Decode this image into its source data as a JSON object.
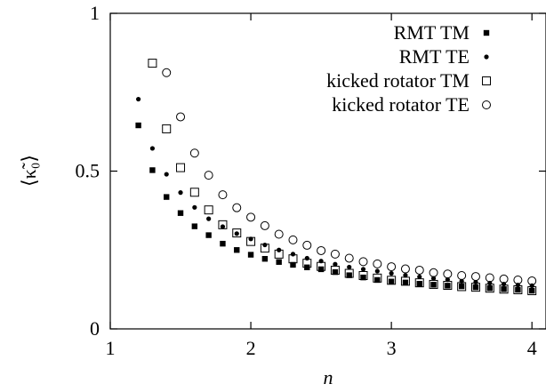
{
  "chart_data": {
    "type": "scatter",
    "title": "",
    "xlabel": "n",
    "ylabel": "⟨κ̃₀⟩",
    "xlim": [
      1,
      4.1
    ],
    "ylim": [
      0,
      1
    ],
    "xticks": [
      "1",
      "2",
      "3",
      "4"
    ],
    "xtick_values": [
      1,
      2,
      3,
      4
    ],
    "yticks": [
      "0",
      "0.5",
      "1"
    ],
    "ytick_values": [
      0,
      0.5,
      1
    ],
    "grid": false,
    "legend_position": "top-right",
    "series": [
      {
        "name": "RMT TM",
        "marker": "filled-square",
        "x": [
          1.2,
          1.3,
          1.4,
          1.5,
          1.6,
          1.7,
          1.8,
          1.9,
          2.0,
          2.1,
          2.2,
          2.3,
          2.4,
          2.5,
          2.6,
          2.7,
          2.8,
          2.9,
          3.0,
          3.1,
          3.2,
          3.3,
          3.4,
          3.5,
          3.6,
          3.7,
          3.8,
          3.9,
          4.0
        ],
        "y": [
          0.645,
          0.503,
          0.418,
          0.367,
          0.325,
          0.297,
          0.27,
          0.25,
          0.235,
          0.222,
          0.212,
          0.203,
          0.195,
          0.189,
          0.18,
          0.17,
          0.163,
          0.155,
          0.15,
          0.147,
          0.143,
          0.14,
          0.137,
          0.135,
          0.132,
          0.129,
          0.126,
          0.124,
          0.121
        ]
      },
      {
        "name": "RMT TE",
        "marker": "filled-circle",
        "x": [
          1.2,
          1.3,
          1.4,
          1.5,
          1.6,
          1.7,
          1.8,
          1.9,
          2.0,
          2.1,
          2.2,
          2.3,
          2.4,
          2.5,
          2.6,
          2.7,
          2.8,
          2.9,
          3.0,
          3.1,
          3.2,
          3.3,
          3.4,
          3.5,
          3.6,
          3.7,
          3.8,
          3.9,
          4.0
        ],
        "y": [
          0.728,
          0.572,
          0.49,
          0.432,
          0.385,
          0.349,
          0.324,
          0.302,
          0.285,
          0.266,
          0.25,
          0.237,
          0.224,
          0.215,
          0.205,
          0.196,
          0.189,
          0.183,
          0.176,
          0.17,
          0.165,
          0.16,
          0.156,
          0.151,
          0.148,
          0.145,
          0.142,
          0.139,
          0.137
        ]
      },
      {
        "name": "kicked rotator TM",
        "marker": "open-square",
        "x": [
          1.3,
          1.4,
          1.5,
          1.6,
          1.7,
          1.8,
          1.9,
          2.0,
          2.1,
          2.2,
          2.3,
          2.4,
          2.5,
          2.6,
          2.7,
          2.8,
          2.9,
          3.0,
          3.1,
          3.2,
          3.3,
          3.4,
          3.5,
          3.6,
          3.7,
          3.8,
          3.9,
          4.0
        ],
        "y": [
          0.842,
          0.634,
          0.511,
          0.433,
          0.377,
          0.33,
          0.304,
          0.277,
          0.256,
          0.237,
          0.222,
          0.208,
          0.198,
          0.186,
          0.176,
          0.169,
          0.161,
          0.154,
          0.151,
          0.146,
          0.141,
          0.138,
          0.134,
          0.132,
          0.129,
          0.126,
          0.124,
          0.121
        ]
      },
      {
        "name": "kicked rotator TE",
        "marker": "open-circle",
        "x": [
          1.4,
          1.5,
          1.6,
          1.7,
          1.8,
          1.9,
          2.0,
          2.1,
          2.2,
          2.3,
          2.4,
          2.5,
          2.6,
          2.7,
          2.8,
          2.9,
          3.0,
          3.1,
          3.2,
          3.3,
          3.4,
          3.5,
          3.6,
          3.7,
          3.8,
          3.9,
          4.0
        ],
        "y": [
          0.812,
          0.672,
          0.557,
          0.487,
          0.425,
          0.384,
          0.354,
          0.327,
          0.3,
          0.282,
          0.265,
          0.248,
          0.237,
          0.224,
          0.213,
          0.206,
          0.197,
          0.19,
          0.186,
          0.178,
          0.174,
          0.169,
          0.166,
          0.162,
          0.158,
          0.155,
          0.152
        ]
      }
    ]
  }
}
